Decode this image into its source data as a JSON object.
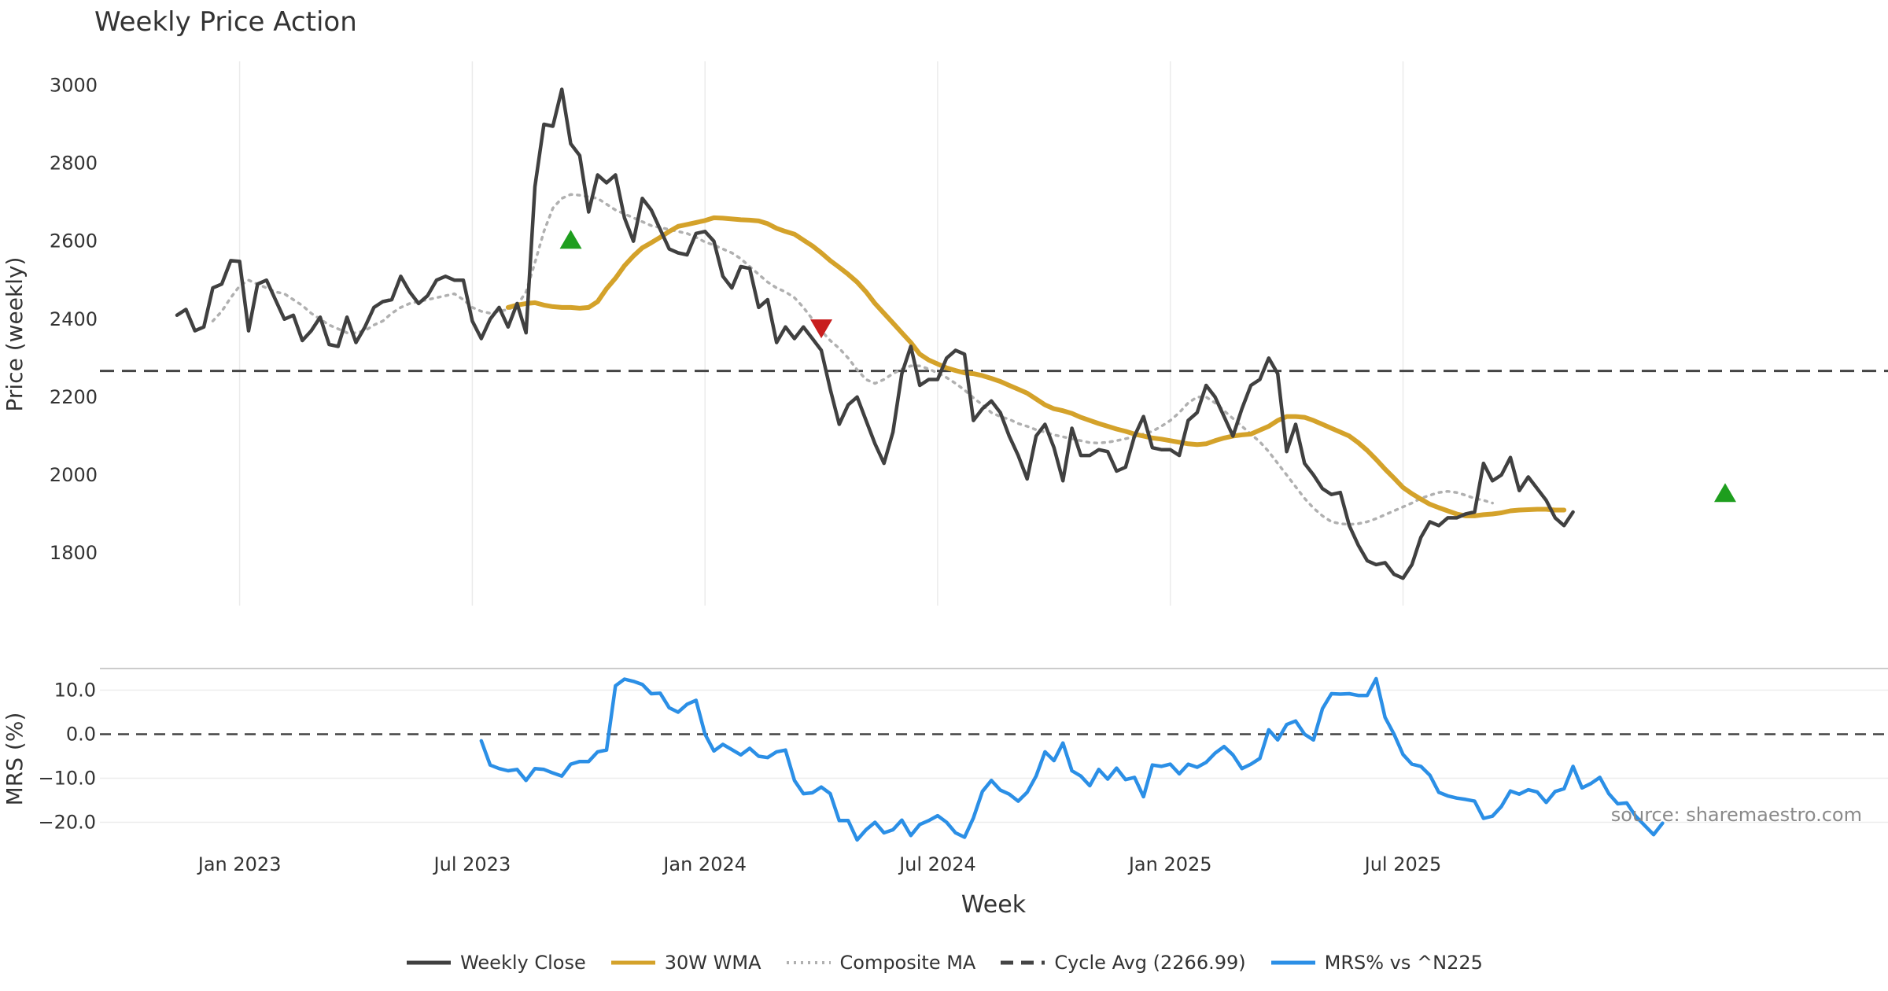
{
  "chart_data": {
    "type": "line",
    "title": "Weekly Price Action",
    "xlabel": "Week",
    "x_ticks": [
      "Jan 2023",
      "Jul 2023",
      "Jan 2024",
      "Jul 2024",
      "Jan 2025",
      "Jul 2025"
    ],
    "x_range": [
      -7,
      182
    ],
    "price_panel": {
      "ylabel": "Price (weekly)",
      "ylim": [
        1680,
        3060
      ],
      "yticks": [
        "1800",
        "2000",
        "2200",
        "2400",
        "2600",
        "2800",
        "3000"
      ],
      "ytick_values": [
        1800,
        2000,
        2200,
        2400,
        2600,
        2800,
        3000
      ],
      "cycle_avg": 2266.99
    },
    "mrs_panel": {
      "ylabel": "MRS (%)",
      "ylim": [
        -25,
        15
      ],
      "yticks": [
        "10.0",
        "0.0",
        "−10.0",
        "−20.0"
      ],
      "ytick_values": [
        10,
        0,
        -10,
        -20
      ]
    },
    "series": [
      {
        "name": "Weekly Close",
        "color": "#404040",
        "style": "solid",
        "start": -7,
        "values": [
          2410,
          2425,
          2370,
          2380,
          2480,
          2490,
          2550,
          2548,
          2370,
          2490,
          2500,
          2450,
          2400,
          2410,
          2345,
          2370,
          2405,
          2335,
          2330,
          2405,
          2340,
          2380,
          2430,
          2445,
          2450,
          2510,
          2470,
          2440,
          2460,
          2500,
          2510,
          2500,
          2500,
          2395,
          2350,
          2400,
          2430,
          2380,
          2440,
          2365,
          2740,
          2900,
          2895,
          2990,
          2850,
          2820,
          2675,
          2770,
          2750,
          2770,
          2660,
          2600,
          2710,
          2680,
          2630,
          2580,
          2570,
          2565,
          2620,
          2625,
          2600,
          2510,
          2480,
          2535,
          2530,
          2430,
          2450,
          2340,
          2380,
          2350,
          2380,
          2350,
          2320,
          2220,
          2130,
          2180,
          2200,
          2140,
          2080,
          2030,
          2110,
          2260,
          2330,
          2230,
          2245,
          2245,
          2300,
          2320,
          2310,
          2140,
          2170,
          2190,
          2160,
          2100,
          2050,
          1990,
          2100,
          2130,
          2070,
          1985,
          2120,
          2050,
          2050,
          2065,
          2060,
          2010,
          2020,
          2100,
          2150,
          2070,
          2065,
          2065,
          2050,
          2140,
          2160,
          2230,
          2200,
          2150,
          2100,
          2170,
          2230,
          2245,
          2300,
          2260,
          2060,
          2130,
          2030,
          2000,
          1965,
          1950,
          1955,
          1870,
          1820,
          1780,
          1770,
          1775,
          1745,
          1735,
          1770,
          1840,
          1880,
          1870,
          1890,
          1890,
          1900,
          1905,
          2030,
          1985,
          2000,
          2045,
          1960,
          1995,
          1965,
          1935,
          1890,
          1870,
          1905
        ]
      },
      {
        "name": "30W WMA",
        "color": "#D4A22A",
        "style": "solid",
        "start": 30,
        "values": [
          2430,
          2436,
          2440,
          2442,
          2436,
          2432,
          2430,
          2430,
          2428,
          2430,
          2445,
          2478,
          2505,
          2537,
          2562,
          2583,
          2596,
          2610,
          2625,
          2638,
          2643,
          2648,
          2653,
          2660,
          2659,
          2657,
          2655,
          2654,
          2652,
          2645,
          2633,
          2625,
          2618,
          2603,
          2588,
          2570,
          2550,
          2533,
          2515,
          2495,
          2470,
          2440,
          2415,
          2390,
          2365,
          2340,
          2310,
          2295,
          2285,
          2275,
          2268,
          2262,
          2260,
          2255,
          2248,
          2240,
          2230,
          2220,
          2210,
          2195,
          2180,
          2170,
          2165,
          2158,
          2148,
          2140,
          2132,
          2125,
          2118,
          2112,
          2105,
          2100,
          2095,
          2092,
          2088,
          2084,
          2080,
          2078,
          2080,
          2088,
          2095,
          2100,
          2103,
          2105,
          2115,
          2125,
          2140,
          2150,
          2150,
          2148,
          2140,
          2130,
          2120,
          2110,
          2100,
          2083,
          2063,
          2040,
          2015,
          1992,
          1968,
          1952,
          1938,
          1925,
          1916,
          1908,
          1900,
          1895,
          1895,
          1898,
          1900,
          1903,
          1908,
          1910,
          1911,
          1912,
          1912,
          1910,
          1910
        ]
      },
      {
        "name": "Composite MA",
        "color": "#B0B0B0",
        "style": "dotted",
        "start": -3,
        "values": [
          2395,
          2420,
          2455,
          2485,
          2500,
          2490,
          2480,
          2470,
          2465,
          2450,
          2435,
          2415,
          2400,
          2385,
          2375,
          2365,
          2365,
          2370,
          2385,
          2395,
          2415,
          2430,
          2440,
          2445,
          2450,
          2455,
          2460,
          2465,
          2450,
          2430,
          2420,
          2415,
          2420,
          2425,
          2435,
          2470,
          2545,
          2625,
          2685,
          2710,
          2720,
          2718,
          2714,
          2710,
          2695,
          2680,
          2670,
          2660,
          2650,
          2640,
          2635,
          2630,
          2625,
          2620,
          2610,
          2598,
          2590,
          2580,
          2570,
          2555,
          2535,
          2515,
          2495,
          2480,
          2470,
          2455,
          2430,
          2400,
          2370,
          2345,
          2325,
          2300,
          2270,
          2245,
          2235,
          2245,
          2260,
          2272,
          2280,
          2280,
          2272,
          2262,
          2250,
          2235,
          2218,
          2198,
          2180,
          2160,
          2150,
          2143,
          2132,
          2125,
          2116,
          2110,
          2103,
          2098,
          2093,
          2088,
          2083,
          2082,
          2084,
          2088,
          2093,
          2098,
          2105,
          2112,
          2125,
          2140,
          2160,
          2185,
          2200,
          2200,
          2185,
          2165,
          2145,
          2125,
          2105,
          2085,
          2060,
          2030,
          2000,
          1970,
          1940,
          1915,
          1895,
          1880,
          1875,
          1873,
          1875,
          1880,
          1888,
          1898,
          1908,
          1918,
          1928,
          1940,
          1948,
          1955,
          1958,
          1955,
          1948,
          1940,
          1935,
          1928
        ]
      },
      {
        "name": "MRS% vs ^N225",
        "color": "#2B8FE6",
        "style": "solid",
        "panel": "mrs",
        "start": 27,
        "values": [
          -1.5,
          -7,
          -7.8,
          -8.3,
          -8,
          -10.5,
          -7.8,
          -8,
          -8.8,
          -9.5,
          -6.8,
          -6.2,
          -6.2,
          -4,
          -3.6,
          11,
          12.5,
          12,
          11.3,
          9.2,
          9.3,
          6,
          5,
          6.8,
          7.7,
          0,
          -3.8,
          -2.3,
          -3.5,
          -4.7,
          -3.2,
          -5,
          -5.3,
          -4,
          -3.6,
          -10.5,
          -13.5,
          -13.3,
          -12,
          -13.5,
          -19.6,
          -19.6,
          -24,
          -21.7,
          -20,
          -22.4,
          -21.7,
          -19.5,
          -23,
          -20.5,
          -19.6,
          -18.5,
          -20,
          -22.4,
          -23.4,
          -19,
          -13,
          -10.5,
          -12.7,
          -13.6,
          -15.2,
          -13.2,
          -9.5,
          -4,
          -6,
          -2,
          -8.3,
          -9.5,
          -11.7,
          -8,
          -10.2,
          -7.7,
          -10.3,
          -9.8,
          -14.2,
          -7,
          -7.3,
          -6.8,
          -9,
          -6.8,
          -7.5,
          -6.4,
          -4.3,
          -2.8,
          -4.7,
          -7.8,
          -6.8,
          -5.5,
          1,
          -1.3,
          2.2,
          3,
          0,
          -1.3,
          5.8,
          9.2,
          9.1,
          9.2,
          8.8,
          8.8,
          12.6,
          3.8,
          0,
          -4.6,
          -6.8,
          -7.3,
          -9.3,
          -13.2,
          -14,
          -14.5,
          -14.8,
          -15.2,
          -19.1,
          -18.6,
          -16.4,
          -12.9,
          -13.6,
          -12.6,
          -13.1,
          -15.5,
          -13,
          -12.4,
          -7.3,
          -12.2,
          -11.2,
          -9.8,
          -13.5,
          -15.8,
          -15.6,
          -18.6,
          -20.7,
          -22.8,
          -20.2
        ]
      }
    ],
    "markers": [
      {
        "type": "buy",
        "shape": "triangle-up",
        "color": "#1E9E1E",
        "x": 37,
        "y": 2605
      },
      {
        "type": "sell",
        "shape": "triangle-down",
        "color": "#C81E1E",
        "x": 65,
        "y": 2375
      },
      {
        "type": "buy",
        "shape": "triangle-up",
        "color": "#1E9E1E",
        "x": 166,
        "y": 1955
      }
    ],
    "legend": [
      {
        "label": "Weekly Close",
        "color": "#404040",
        "style": "solid"
      },
      {
        "label": "30W WMA",
        "color": "#D4A22A",
        "style": "solid"
      },
      {
        "label": "Composite MA",
        "color": "#B0B0B0",
        "style": "dotted"
      },
      {
        "label": "Cycle Avg (2266.99)",
        "color": "#444444",
        "style": "dashed"
      },
      {
        "label": "MRS% vs ^N225",
        "color": "#2B8FE6",
        "style": "solid"
      }
    ],
    "watermark": "source: sharemaestro.com"
  }
}
